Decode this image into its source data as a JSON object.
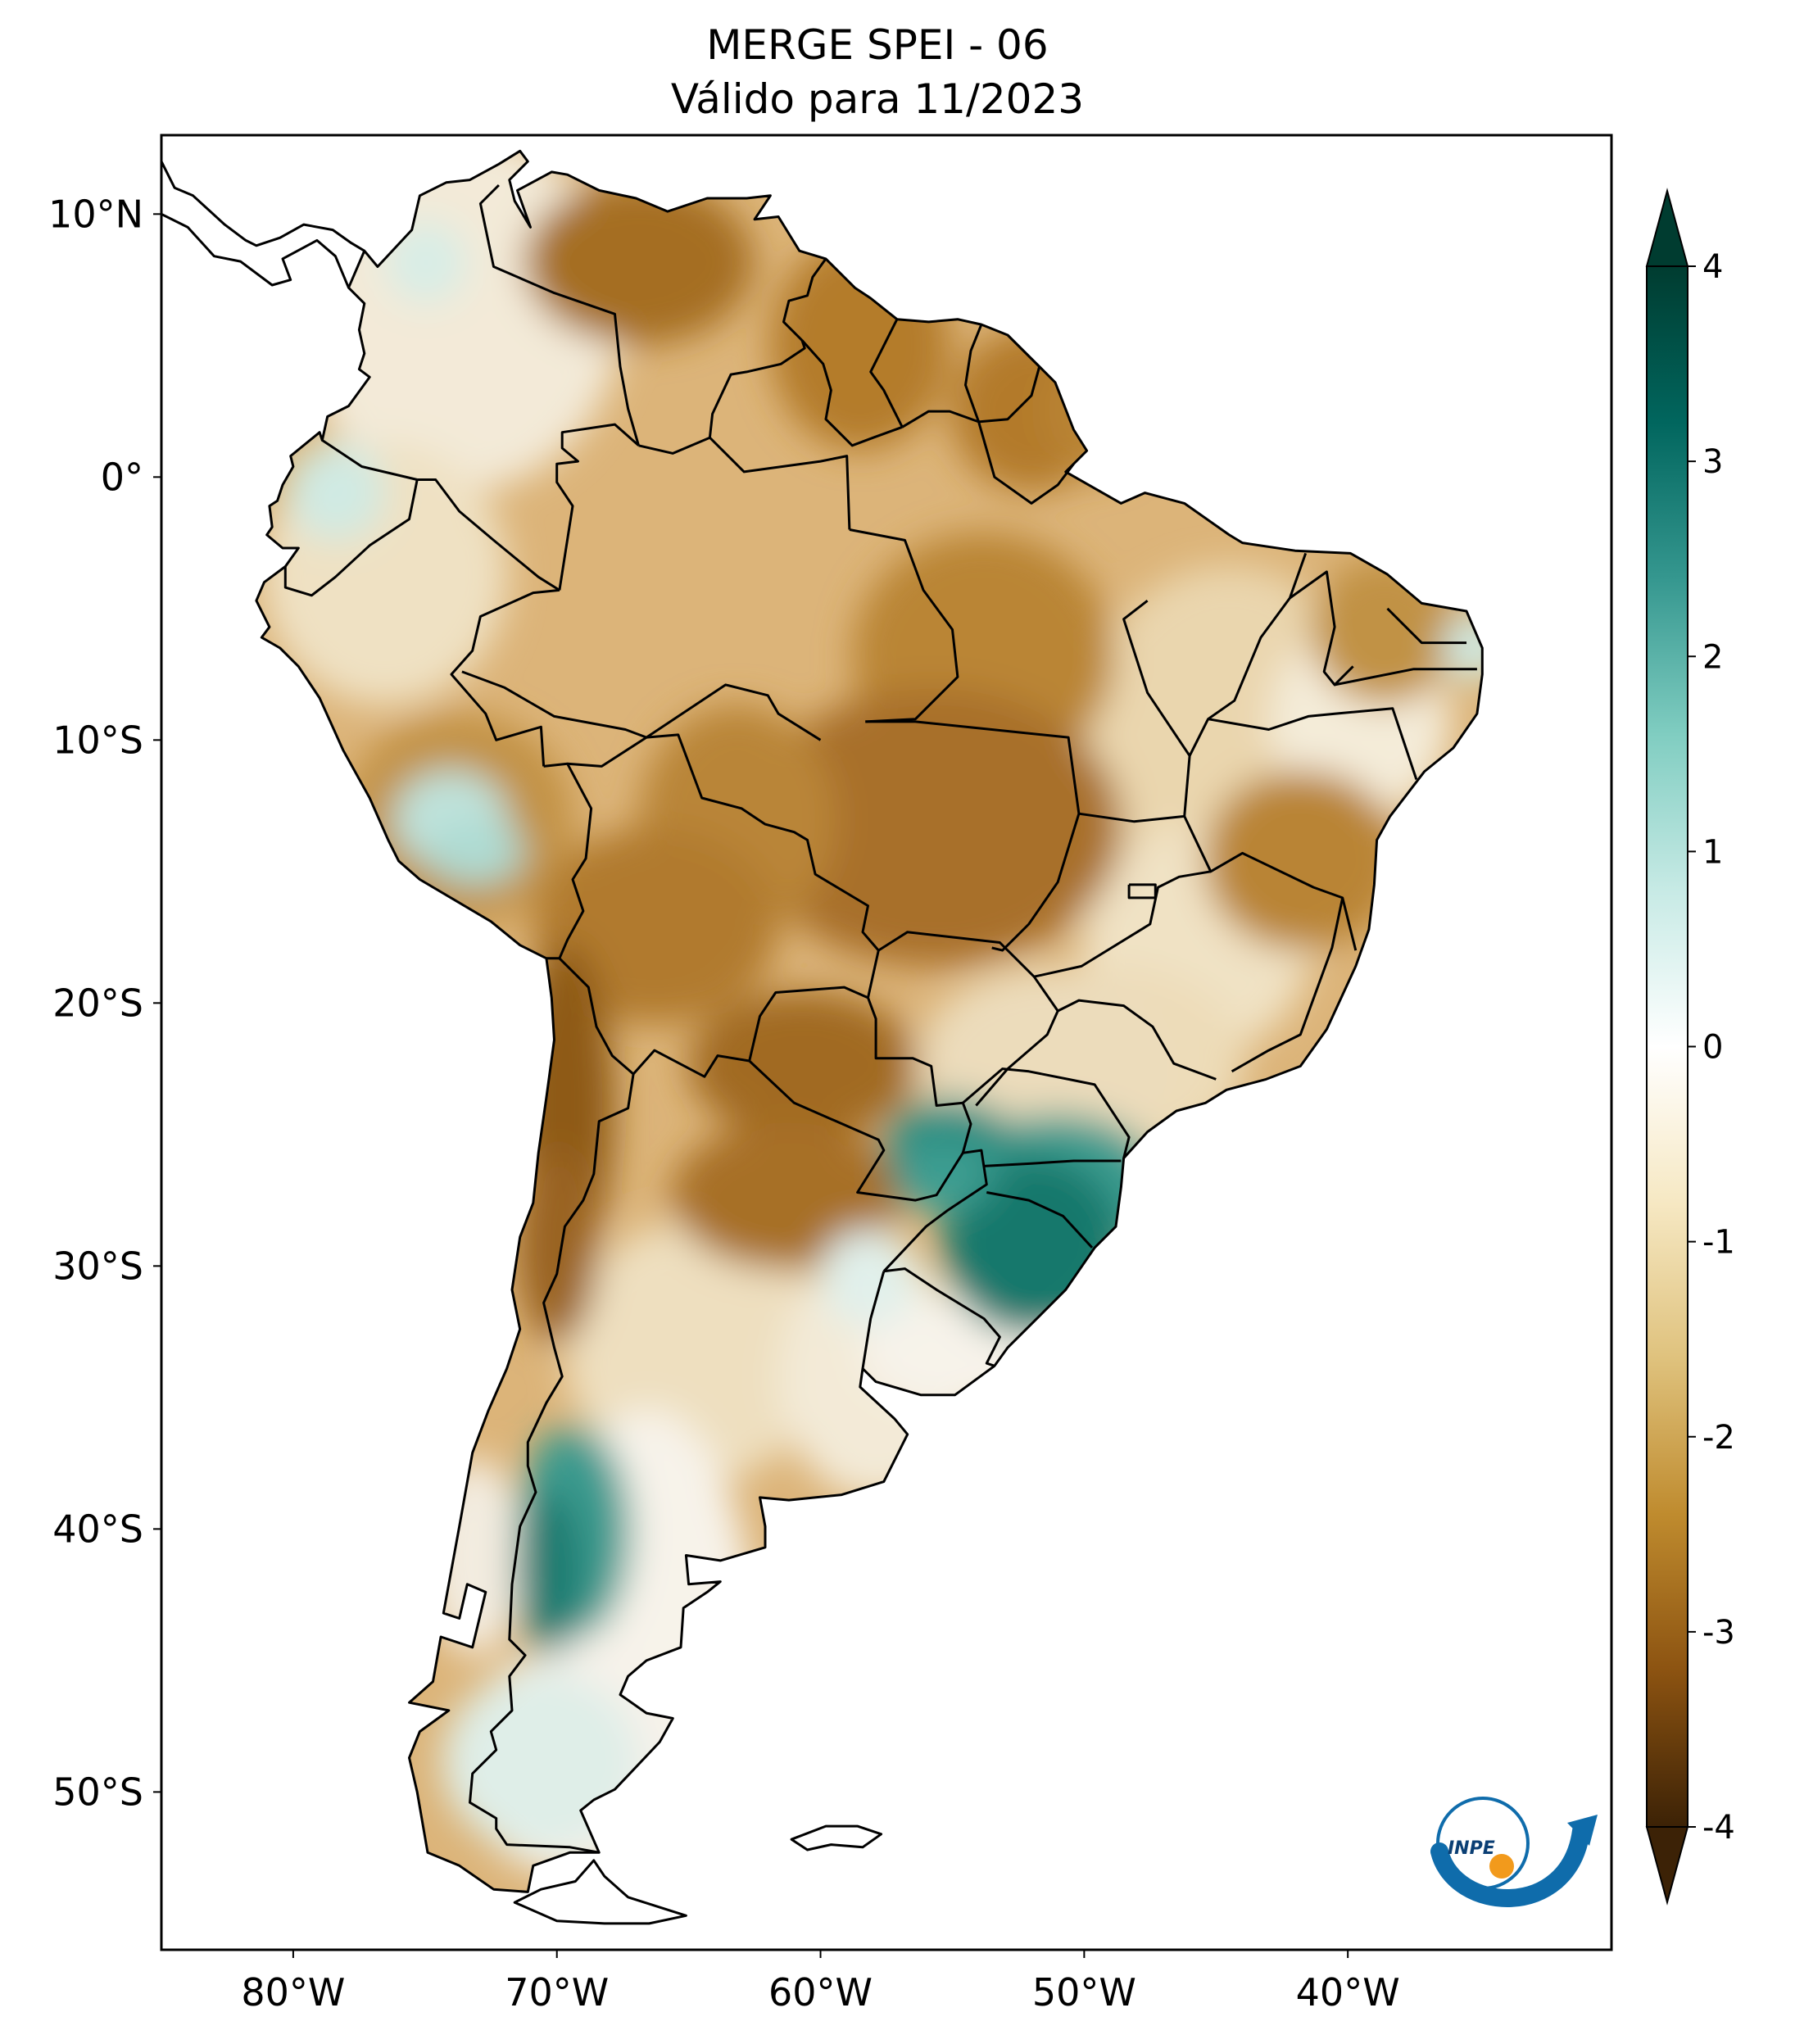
{
  "title": {
    "line1": "MERGE   SPEI - 06",
    "line2": "Válido para 11/2023"
  },
  "axes": {
    "lat_labels": [
      "10°N",
      "0°",
      "10°S",
      "20°S",
      "30°S",
      "40°S",
      "50°S"
    ],
    "lon_labels": [
      "80°W",
      "70°W",
      "60°W",
      "50°W",
      "40°W"
    ],
    "lat_values": [
      10,
      0,
      -10,
      -20,
      -30,
      -40,
      -50
    ],
    "lon_values": [
      -80,
      -70,
      -60,
      -50,
      -40
    ],
    "lon_range": [
      -85,
      -30
    ],
    "lat_range": [
      -56,
      13
    ]
  },
  "colorbar": {
    "min": -4,
    "max": 4,
    "ticks": [
      "4",
      "3",
      "2",
      "1",
      "0",
      "-1",
      "-2",
      "-3",
      "-4"
    ],
    "tick_values": [
      4,
      3,
      2,
      1,
      0,
      -1,
      -2,
      -3,
      -4
    ],
    "extend": "both",
    "colors": [
      "#3c2206",
      "#8c5311",
      "#bf8b2e",
      "#dfc27d",
      "#f6e8c3",
      "#ffffff",
      "#c7eae5",
      "#80cdc1",
      "#35978f",
      "#01665e",
      "#003c30"
    ]
  },
  "colors": {
    "dry": "#b27a2a",
    "wet": "#118677",
    "border": "#000000"
  },
  "logo": {
    "text": "INPE"
  }
}
